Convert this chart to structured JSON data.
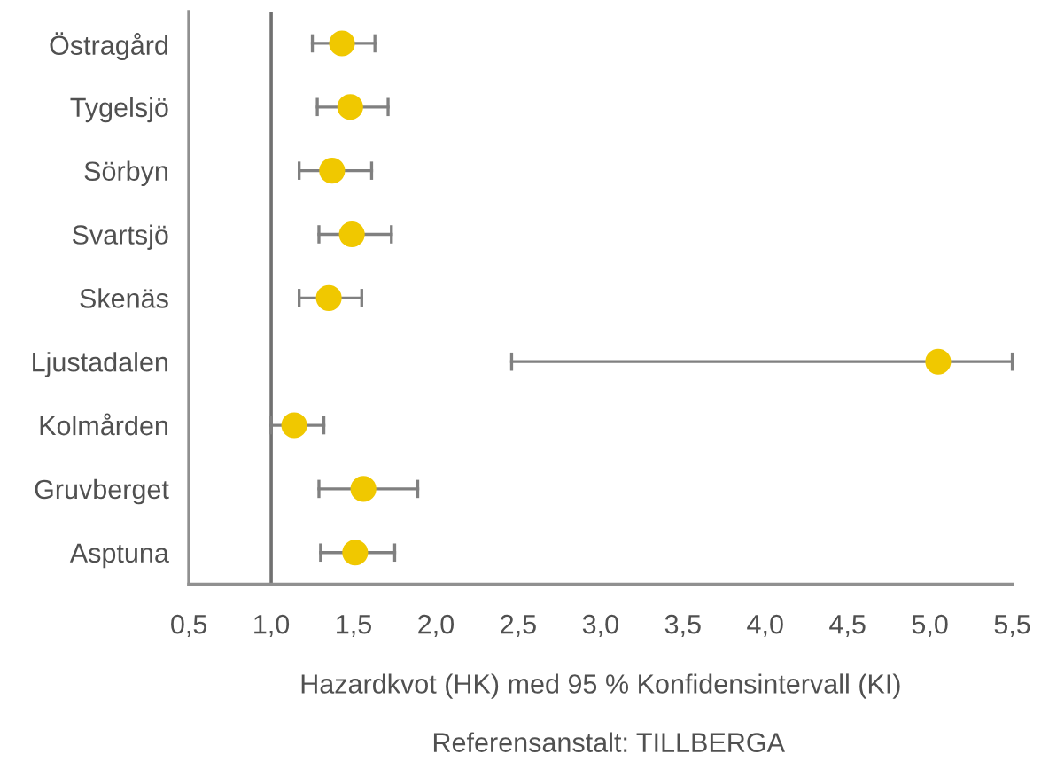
{
  "chart_data": {
    "type": "scatter",
    "orientation": "horizontal",
    "xlabel": "Hazardkvot (HK) med 95 % Konfidensintervall (KI)",
    "annotations": [
      "Referensanstalt: TILLBERGA"
    ],
    "categories": [
      "Östragård",
      "Tygelsjö",
      "Sörbyn",
      "Svartsjö",
      "Skenäs",
      "Ljustadalen",
      "Kolmården",
      "Gruvberget",
      "Asptuna"
    ],
    "series": [
      {
        "color": "#f0c800",
        "values": [
          1.43,
          1.48,
          1.37,
          1.49,
          1.35,
          5.05,
          1.14,
          1.56,
          1.51
        ],
        "errors": [
          [
            1.25,
            1.63
          ],
          [
            1.28,
            1.71
          ],
          [
            1.17,
            1.61
          ],
          [
            1.29,
            1.73
          ],
          [
            1.17,
            1.55
          ],
          [
            2.46,
            5.5
          ],
          [
            1.0,
            1.32
          ],
          [
            1.29,
            1.89
          ],
          [
            1.3,
            1.75
          ]
        ]
      }
    ],
    "xlim": [
      0.5,
      5.5
    ],
    "xticks": [
      {
        "value": 0.5,
        "label": "0,5"
      },
      {
        "value": 1.0,
        "label": "1,0"
      },
      {
        "value": 1.5,
        "label": "1,5"
      },
      {
        "value": 2.0,
        "label": "2,0"
      },
      {
        "value": 2.5,
        "label": "2,5"
      },
      {
        "value": 3.0,
        "label": "3,0"
      },
      {
        "value": 3.5,
        "label": "3,5"
      },
      {
        "value": 4.0,
        "label": "4,0"
      },
      {
        "value": 4.5,
        "label": "4,5"
      },
      {
        "value": 5.0,
        "label": "5,0"
      },
      {
        "value": 5.5,
        "label": "5,5"
      }
    ],
    "ref_lines": [
      {
        "axis": "x",
        "value": 1.0,
        "color": "#707070"
      }
    ],
    "marker": "circle",
    "grid": false,
    "legend": false
  }
}
